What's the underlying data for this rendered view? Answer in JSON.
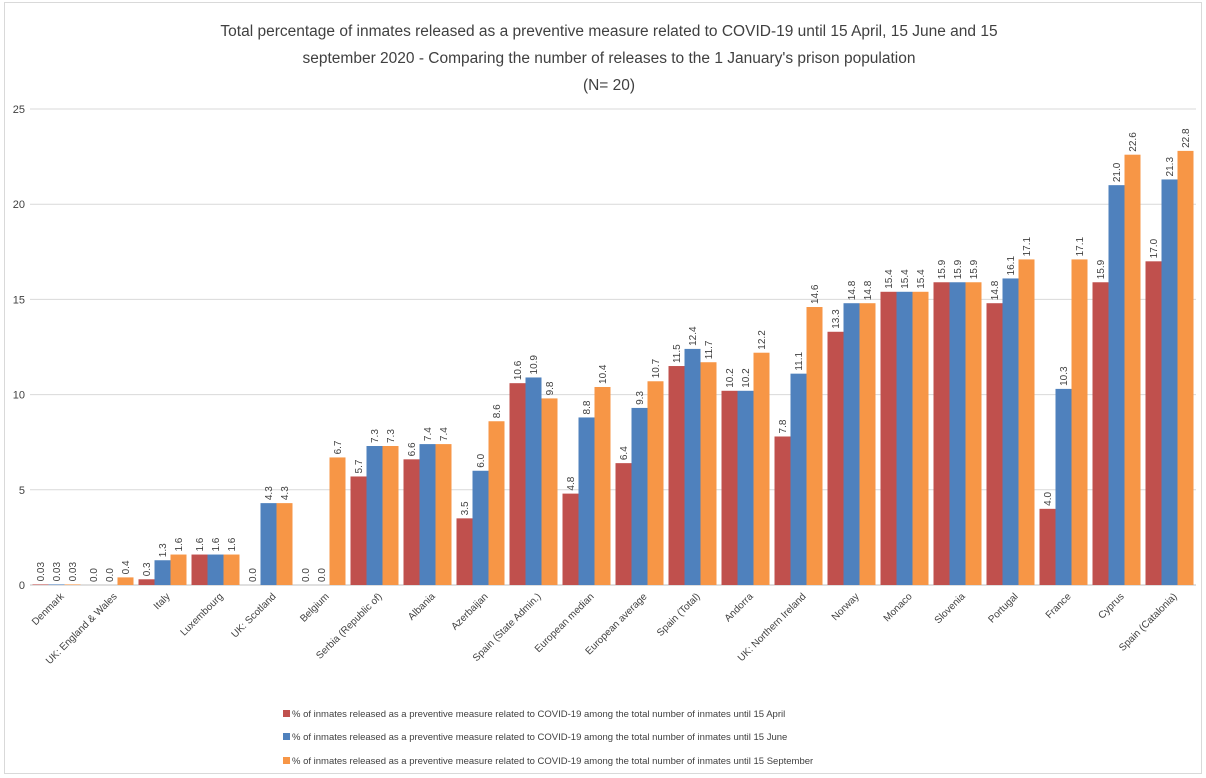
{
  "chart_data": {
    "type": "bar",
    "title_lines": [
      "Total percentage of inmates released as a preventive measure related to COVID-19 until 15 April, 15 June and 15",
      "september 2020 - Comparing the number of releases to the 1 January's prison population",
      "(N= 20)"
    ],
    "ylim": [
      0,
      25
    ],
    "yticks": [
      0,
      5,
      10,
      15,
      20,
      25
    ],
    "grid": true,
    "legend_position": "bottom",
    "categories": [
      "Denmark",
      "UK: England & Wales",
      "Italy",
      "Luxembourg",
      "UK: Scotland",
      "Belgium",
      "Serbia (Republic of)",
      "Albania",
      "Azerbaijan",
      "Spain (State Admin.)",
      "European median",
      "European average",
      "Spain (Total)",
      "Andorra",
      "UK: Northern Ireland",
      "Norway",
      "Monaco",
      "Slovenia",
      "Portugal",
      "France",
      "Cyprus",
      "Spain (Catalonia)"
    ],
    "series": [
      {
        "name": "% of inmates released as a preventive measure related to COVID-19 among the total number of inmates until 15 April",
        "color": "#c0504d",
        "values": [
          0.03,
          0.0,
          0.3,
          1.6,
          0.0,
          0.0,
          5.7,
          6.6,
          3.5,
          10.6,
          4.8,
          6.4,
          11.5,
          10.2,
          7.8,
          13.3,
          15.4,
          15.9,
          14.8,
          4.0,
          15.9,
          17.0
        ],
        "labels": [
          "0.03",
          "0.0",
          "0.3",
          "1.6",
          "0.0",
          "0.0",
          "5.7",
          "6.6",
          "3.5",
          "10.6",
          "4.8",
          "6.4",
          "11.5",
          "10.2",
          "7.8",
          "13.3",
          "15.4",
          "15.9",
          "14.8",
          "4.0",
          "15.9",
          "17.0"
        ]
      },
      {
        "name": "% of inmates released as a preventive measure related to COVID-19 among the total number of inmates until 15 June",
        "color": "#4f81bd",
        "values": [
          0.03,
          0.0,
          1.3,
          1.6,
          4.3,
          0.0,
          7.3,
          7.4,
          6.0,
          10.9,
          8.8,
          9.3,
          12.4,
          10.2,
          11.1,
          14.8,
          15.4,
          15.9,
          16.1,
          10.3,
          21.0,
          21.3
        ],
        "labels": [
          "0.03",
          "0.0",
          "1.3",
          "1.6",
          "4.3",
          "0.0",
          "7.3",
          "7.4",
          "6.0",
          "10.9",
          "8.8",
          "9.3",
          "12.4",
          "10.2",
          "11.1",
          "14.8",
          "15.4",
          "15.9",
          "16.1",
          "10.3",
          "21.0",
          "21.3"
        ]
      },
      {
        "name": "% of inmates released as a preventive measure related to COVID-19 among the total number of inmates until 15 September",
        "color": "#f79646",
        "values": [
          0.03,
          0.4,
          1.6,
          1.6,
          4.3,
          6.7,
          7.3,
          7.4,
          8.6,
          9.8,
          10.4,
          10.7,
          11.7,
          12.2,
          14.6,
          14.8,
          15.4,
          15.9,
          17.1,
          17.1,
          22.6,
          22.8
        ],
        "labels": [
          "0.03",
          "0.4",
          "1.6",
          "1.6",
          "4.3",
          "6.7",
          "7.3",
          "7.4",
          "8.6",
          "9.8",
          "10.4",
          "10.7",
          "11.7",
          "12.2",
          "14.6",
          "14.8",
          "15.4",
          "15.9",
          "17.1",
          "17.1",
          "22.6",
          "22.8"
        ]
      }
    ]
  }
}
